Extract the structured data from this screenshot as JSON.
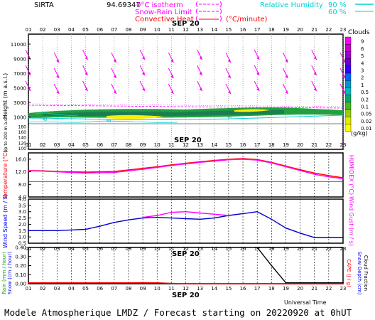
{
  "header": {
    "station": "SIRTA",
    "value": "94.69347",
    "legend_isotherm": "0°C isotherm",
    "legend_snow_rain": "Snow-Rain Limit",
    "legend_convective": "Convective Heat",
    "legend_convective_unit": "(°C/minute)",
    "rh_label": "Relative Humidity",
    "rh_90": "90 %",
    "rh_60": "60 %"
  },
  "colors": {
    "magenta": "#ff00ff",
    "cyan": "#00e0e0",
    "red": "#ff0000",
    "blue": "#0000cc",
    "temp_text": "#ff0000",
    "wind_text": "#0000ff",
    "green_text": "#00aa00"
  },
  "footer": {
    "title": "Modele Atmospherique LMDZ / Forecast starting on 20220920 at 0hUT",
    "time_axis_label": "Universal Time"
  },
  "date_label": "SEP 20",
  "hours": [
    "01",
    "02",
    "03",
    "04",
    "05",
    "06",
    "07",
    "08",
    "09",
    "10",
    "11",
    "12",
    "13",
    "14",
    "15",
    "16",
    "17",
    "18",
    "19",
    "20",
    "21",
    "22",
    "23"
  ],
  "clouds_legend": {
    "title": "Clouds",
    "unit": "(g/kg)",
    "levels": [
      "9",
      "6",
      "5",
      "4",
      "3",
      "2",
      "1",
      "0.5",
      "0.2",
      "0.1",
      "0.05",
      "0.02",
      "0.01"
    ],
    "colors": [
      "#ff00ff",
      "#cc00cc",
      "#9900cc",
      "#6600cc",
      "#3300ff",
      "#0066ff",
      "#0099cc",
      "#00bbbb",
      "#00aa66",
      "#44bb22",
      "#99cc11",
      "#ddee00",
      "#ffff00"
    ]
  },
  "chart_data": [
    {
      "type": "heatmap",
      "panel": "vertical-profile",
      "ylabel": "Height (m a.s.l.)",
      "ylabel_low": "Up to 200 m a.s.l.",
      "y_ticks_upper": [
        "11000",
        "9000",
        "7000",
        "5000",
        "3000",
        "1000"
      ],
      "y_ticks_lower": [
        "180",
        "160",
        "140",
        "120",
        "100"
      ],
      "isotherm_height_m": 2900,
      "cloud_band_height_m": [
        1000,
        2200
      ],
      "contour_labels": [
        "40",
        "60",
        "80",
        "90"
      ]
    },
    {
      "type": "line",
      "panel": "temperature",
      "ylabel": "Temperature (°C)",
      "ylabel_right": "HUMIDEX (°C)",
      "y_ticks": [
        "16.0",
        "12.0",
        "8.0",
        "4.0"
      ],
      "ylim": [
        4,
        18
      ],
      "x": [
        1,
        2,
        3,
        4,
        5,
        6,
        7,
        8,
        9,
        10,
        11,
        12,
        13,
        14,
        15,
        16,
        17,
        18,
        19,
        20,
        21,
        22,
        23
      ],
      "series": [
        {
          "color": "#ff0000",
          "values": [
            12.4,
            12.3,
            12.1,
            12.0,
            11.9,
            12.0,
            12.1,
            12.6,
            13.1,
            13.6,
            14.2,
            14.7,
            15.2,
            15.6,
            16.0,
            16.2,
            15.9,
            15.0,
            13.8,
            12.7,
            11.6,
            10.8,
            10.1
          ]
        },
        {
          "color": "#ff00ff",
          "values": [
            12.3,
            12.2,
            12.0,
            11.8,
            11.6,
            11.7,
            11.8,
            12.3,
            12.8,
            13.4,
            14.0,
            14.5,
            15.0,
            15.4,
            15.8,
            16.0,
            15.7,
            14.8,
            13.6,
            12.4,
            11.2,
            10.4,
            9.8
          ]
        }
      ],
      "reference_line": 8.9
    },
    {
      "type": "line",
      "panel": "wind",
      "ylabel": "Wind Speed (m / s)",
      "ylabel_right": "Wind Gust (m / s)",
      "y_ticks": [
        "4.0",
        "3.5",
        "3.0",
        "2.5",
        "2.0",
        "1.5",
        "1.0",
        "0.5"
      ],
      "ylim": [
        0.5,
        4.0
      ],
      "x": [
        1,
        2,
        3,
        4,
        5,
        6,
        7,
        8,
        9,
        10,
        11,
        12,
        13,
        14,
        15,
        16,
        17,
        18,
        19,
        20,
        21,
        22,
        23
      ],
      "series": [
        {
          "color": "#0000cc",
          "values": [
            1.5,
            1.5,
            1.5,
            1.55,
            1.6,
            1.85,
            2.15,
            2.35,
            2.5,
            2.55,
            2.5,
            2.45,
            2.4,
            2.5,
            2.7,
            2.85,
            3.0,
            2.4,
            1.7,
            1.3,
            0.95,
            0.95,
            0.95
          ]
        },
        {
          "color": "#ff00ff",
          "values": [
            null,
            null,
            null,
            null,
            null,
            null,
            null,
            null,
            2.55,
            2.7,
            2.95,
            3.0,
            2.9,
            2.8,
            2.7,
            null,
            null,
            null,
            null,
            null,
            null,
            null,
            null
          ]
        }
      ]
    },
    {
      "type": "line",
      "panel": "precipitation",
      "ylabel": "Rain (mm / hour)",
      "ylabel2": "Snow (cm / hour)",
      "ylabel_right": "CAPE (J / g)",
      "ylabel_right2": "Snow Depth (cm)",
      "ylabel_right3": "Cloud Fraction",
      "y_ticks": [
        "0.40",
        "0.30",
        "0.20",
        "0.10",
        "0.00"
      ],
      "ylim": [
        0,
        0.4
      ],
      "x": [
        1,
        2,
        3,
        4,
        5,
        6,
        7,
        8,
        9,
        10,
        11,
        12,
        13,
        14,
        15,
        16,
        17,
        18,
        19,
        20,
        21,
        22,
        23
      ],
      "series": [
        {
          "color": "#ff0000",
          "values": [
            0.01,
            0.01,
            0.01,
            0.01,
            0.01,
            0.01,
            0.01,
            0.01,
            0.012,
            0.01,
            0.005,
            0.0,
            0.0,
            0.0,
            0.0,
            0.0,
            0.0,
            0.0,
            0.0,
            0.0,
            0.0,
            0.0,
            0.0
          ]
        },
        {
          "color": "#000000",
          "values": [
            null,
            null,
            null,
            null,
            null,
            null,
            null,
            null,
            null,
            null,
            null,
            null,
            null,
            null,
            null,
            null,
            0.4,
            0.2,
            0.01,
            0.01,
            0.01,
            0.01,
            0.01
          ]
        }
      ]
    }
  ]
}
